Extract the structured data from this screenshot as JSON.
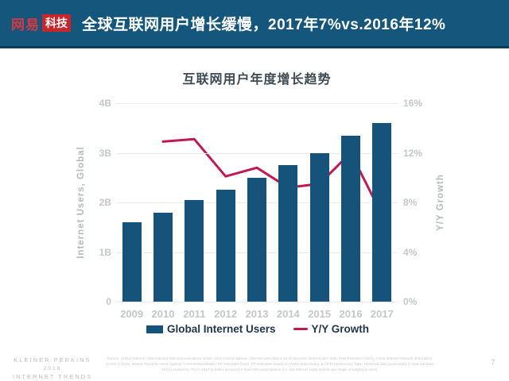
{
  "header": {
    "logo_netease": "网易",
    "logo_tech": "科技",
    "title": "全球互联网用户增长缓慢，2017年7%vs.2016年12%"
  },
  "chart_data": {
    "type": "bar",
    "subtype": "combo-bar-line",
    "title": "互联网用户年度增长趋势",
    "categories": [
      "2009",
      "2010",
      "2011",
      "2012",
      "2013",
      "2014",
      "2015",
      "2016",
      "2017"
    ],
    "series": [
      {
        "name": "Global Internet Users",
        "type": "bar",
        "axis": "left",
        "unit": "B",
        "values": [
          1.6,
          1.8,
          2.05,
          2.25,
          2.5,
          2.75,
          3.0,
          3.35,
          3.6
        ]
      },
      {
        "name": "Y/Y Growth",
        "type": "line",
        "axis": "right",
        "unit": "%",
        "values": [
          null,
          12.9,
          13.1,
          10.1,
          10.8,
          9.2,
          9.5,
          12.0,
          7.0
        ]
      }
    ],
    "left_axis": {
      "label": "Internet Users, Global",
      "range": [
        0,
        4
      ],
      "ticks": [
        "0",
        "1B",
        "2B",
        "3B",
        "4B"
      ]
    },
    "right_axis": {
      "label": "Y/Y Growth",
      "range": [
        0,
        16
      ],
      "ticks": [
        "0%",
        "4%",
        "8%",
        "12%",
        "16%"
      ]
    },
    "grid": true,
    "legend_position": "bottom"
  },
  "legend": {
    "bar_label": "Global Internet Users",
    "line_label": "Y/Y Growth"
  },
  "colors": {
    "header_bg": "#15567c",
    "header_border": "#0d3e5b",
    "logo_red": "#c9252b",
    "bar": "#15537a",
    "line": "#c01a55",
    "grid": "#e9eaec",
    "axis_text": "#c3c7ca",
    "legend_text": "#22374a"
  },
  "footer": {
    "brand_line1": "KLEINER PERKINS",
    "brand_line2": "2018",
    "brand_line3": "INTERNET TRENDS",
    "source": "Source: United Nations / International Telecommunications Union, USA Census Bureau. Internet user data is as of mid-year. Internet user data: Pew Research (USA), China Internet Network Information Center (China), Islamic Republic News Agency / InternetWorldStats / KP estimates (Iran), KP estimates based on IAMAI data (India), & APJII (Indonesia). Note: Historical data (particularly in Sub-Saharan Africa) revised by ITU in 2017 to better account for dual-SIM subscriptions (i.e. two Internet subscriptions per single smartphone user).",
    "page_number": "7"
  }
}
